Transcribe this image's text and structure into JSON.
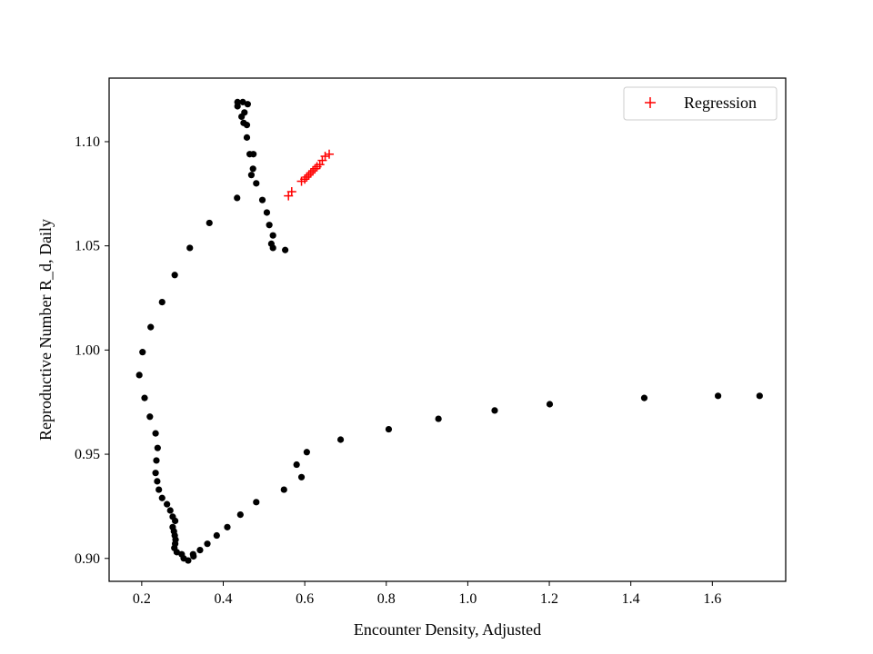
{
  "chart_data": {
    "type": "scatter",
    "xlabel": "Encounter Density, Adjusted",
    "ylabel": "Reproductive Number R_d, Daily",
    "xlim": [
      0.12,
      1.78
    ],
    "ylim": [
      0.889,
      1.1305
    ],
    "xticks": [
      0.2,
      0.4,
      0.6,
      0.8,
      1.0,
      1.2,
      1.4,
      1.6
    ],
    "xtick_labels": [
      "0.2",
      "0.4",
      "0.6",
      "0.8",
      "1.0",
      "1.2",
      "1.4",
      "1.6"
    ],
    "yticks": [
      0.9,
      0.95,
      1.0,
      1.05,
      1.1
    ],
    "ytick_labels": [
      "0.90",
      "0.95",
      "1.00",
      "1.05",
      "1.10"
    ],
    "grid": false,
    "legend": {
      "position": "top-right",
      "entries": [
        "Regression"
      ]
    },
    "series": [
      {
        "name": "",
        "marker": "circle",
        "color": "#000000",
        "points": [
          [
            0.435,
            1.119
          ],
          [
            0.448,
            1.119
          ],
          [
            0.46,
            1.118
          ],
          [
            0.435,
            1.117
          ],
          [
            0.452,
            1.114
          ],
          [
            0.445,
            1.112
          ],
          [
            0.45,
            1.109
          ],
          [
            0.458,
            1.108
          ],
          [
            0.458,
            1.102
          ],
          [
            0.465,
            1.094
          ],
          [
            0.474,
            1.094
          ],
          [
            0.473,
            1.087
          ],
          [
            0.469,
            1.084
          ],
          [
            0.481,
            1.08
          ],
          [
            0.496,
            1.072
          ],
          [
            0.507,
            1.066
          ],
          [
            0.513,
            1.06
          ],
          [
            0.522,
            1.055
          ],
          [
            0.518,
            1.051
          ],
          [
            0.522,
            1.049
          ],
          [
            0.552,
            1.048
          ],
          [
            0.434,
            1.073
          ],
          [
            0.366,
            1.061
          ],
          [
            0.318,
            1.049
          ],
          [
            0.281,
            1.036
          ],
          [
            0.25,
            1.023
          ],
          [
            0.222,
            1.011
          ],
          [
            0.202,
            0.999
          ],
          [
            0.194,
            0.988
          ],
          [
            0.207,
            0.977
          ],
          [
            0.22,
            0.968
          ],
          [
            0.234,
            0.96
          ],
          [
            0.239,
            0.953
          ],
          [
            0.236,
            0.947
          ],
          [
            0.234,
            0.941
          ],
          [
            0.238,
            0.937
          ],
          [
            0.242,
            0.933
          ],
          [
            0.25,
            0.929
          ],
          [
            0.262,
            0.926
          ],
          [
            0.27,
            0.923
          ],
          [
            0.276,
            0.92
          ],
          [
            0.282,
            0.918
          ],
          [
            0.276,
            0.915
          ],
          [
            0.279,
            0.913
          ],
          [
            0.281,
            0.911
          ],
          [
            0.283,
            0.909
          ],
          [
            0.282,
            0.907
          ],
          [
            0.28,
            0.905
          ],
          [
            0.286,
            0.903
          ],
          [
            0.298,
            0.902
          ],
          [
            0.303,
            0.9
          ],
          [
            0.314,
            0.899
          ],
          [
            0.327,
            0.901
          ],
          [
            0.326,
            0.902
          ],
          [
            0.343,
            0.904
          ],
          [
            0.361,
            0.907
          ],
          [
            0.384,
            0.911
          ],
          [
            0.41,
            0.915
          ],
          [
            0.442,
            0.921
          ],
          [
            0.481,
            0.927
          ],
          [
            0.549,
            0.933
          ],
          [
            0.592,
            0.939
          ],
          [
            0.58,
            0.945
          ],
          [
            0.605,
            0.951
          ],
          [
            0.688,
            0.957
          ],
          [
            0.806,
            0.962
          ],
          [
            0.928,
            0.967
          ],
          [
            1.066,
            0.971
          ],
          [
            1.201,
            0.974
          ],
          [
            1.433,
            0.977
          ],
          [
            1.614,
            0.978
          ],
          [
            1.716,
            0.978
          ]
        ]
      },
      {
        "name": "Regression",
        "marker": "plus",
        "color": "#ff0000",
        "points": [
          [
            0.56,
            1.074
          ],
          [
            0.568,
            1.076
          ],
          [
            0.592,
            1.081
          ],
          [
            0.6,
            1.082
          ],
          [
            0.605,
            1.083
          ],
          [
            0.61,
            1.084
          ],
          [
            0.615,
            1.085
          ],
          [
            0.62,
            1.086
          ],
          [
            0.625,
            1.087
          ],
          [
            0.63,
            1.088
          ],
          [
            0.637,
            1.089
          ],
          [
            0.643,
            1.091
          ],
          [
            0.65,
            1.093
          ],
          [
            0.66,
            1.094
          ]
        ]
      }
    ]
  }
}
